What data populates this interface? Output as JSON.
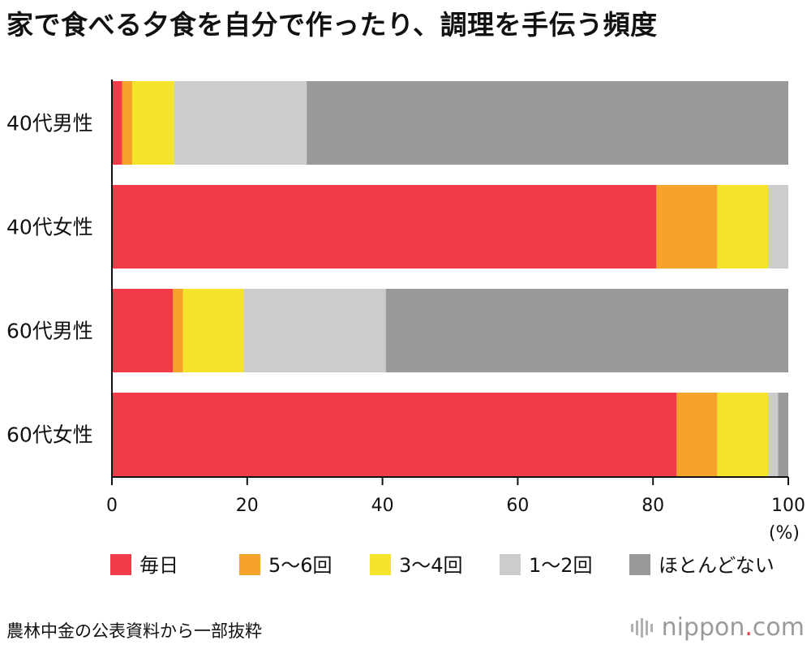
{
  "title": "家で食べる夕食を自分で作ったり、調理を手伝う頻度",
  "source": "農林中金の公表資料から一部抜粋",
  "brand": {
    "name": "nippon",
    "dot": ".",
    "tld": "com"
  },
  "chart_data": {
    "type": "bar",
    "orientation": "horizontal",
    "stacked": true,
    "categories": [
      "40代男性",
      "40代女性",
      "60代男性",
      "60代女性"
    ],
    "series": [
      {
        "name": "毎日",
        "color": "#f23a48",
        "values": [
          1.5,
          80.5,
          9.0,
          83.5
        ]
      },
      {
        "name": "5〜6回",
        "color": "#f5a32a",
        "values": [
          1.5,
          9.0,
          1.5,
          6.0
        ]
      },
      {
        "name": "3〜4回",
        "color": "#f5e32c",
        "values": [
          6.2,
          7.5,
          9.0,
          7.5
        ]
      },
      {
        "name": "1〜2回",
        "color": "#cccccc",
        "values": [
          19.6,
          3.0,
          21.0,
          1.5
        ]
      },
      {
        "name": "ほとんどない",
        "color": "#999999",
        "values": [
          71.2,
          0.0,
          59.5,
          1.5
        ]
      }
    ],
    "xlim": [
      0,
      100
    ],
    "xticks": [
      "0",
      "20",
      "40",
      "60",
      "80",
      "100"
    ],
    "xunit": "(%)",
    "legend_position": "bottom"
  }
}
